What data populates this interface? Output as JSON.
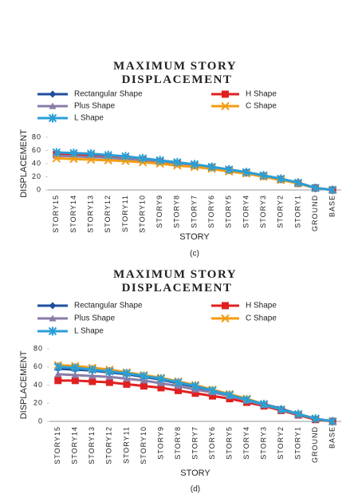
{
  "chart_data": [
    {
      "type": "line",
      "title": "MAXIMUM STORY DISPLACEMENT",
      "caption": "(c)",
      "x_label": "STORY",
      "y_label": "DISPLACEMENT",
      "categories": [
        "STORY15",
        "STORY14",
        "STORY13",
        "STORY12",
        "STORY11",
        "STORY10",
        "STORY9",
        "STORY8",
        "STORY7",
        "STORY6",
        "STORY5",
        "STORY4",
        "STORY3",
        "STORY2",
        "STORY1",
        "GROUND",
        "BASE"
      ],
      "ylim": [
        0,
        80
      ],
      "yticks": [
        0,
        20,
        40,
        60,
        80
      ],
      "grid": false,
      "series": [
        {
          "name": "Rectangular Shape",
          "color": "#1f4e9c",
          "marker": "diamond",
          "values": [
            55,
            54,
            53,
            51,
            49,
            47,
            44,
            41,
            38,
            35,
            31,
            27,
            22,
            17,
            11,
            3,
            0
          ]
        },
        {
          "name": "H Shape",
          "color": "#e02020",
          "marker": "square",
          "values": [
            54,
            53,
            52,
            50,
            48,
            46,
            43,
            40,
            37,
            34,
            30,
            26,
            21,
            16,
            10,
            3,
            0
          ]
        },
        {
          "name": "Plus Shape",
          "color": "#8a7ca8",
          "marker": "triangle",
          "values": [
            52,
            51,
            50,
            49,
            47,
            45,
            42,
            39,
            36,
            33,
            29,
            25,
            21,
            16,
            10,
            3,
            0
          ]
        },
        {
          "name": "C Shape",
          "color": "#f39c12",
          "marker": "cross",
          "values": [
            48,
            47,
            46,
            45,
            44,
            42,
            40,
            37,
            35,
            32,
            28,
            25,
            20,
            15,
            10,
            3,
            0
          ]
        },
        {
          "name": "L Shape",
          "color": "#2a9fd6",
          "marker": "asterisk",
          "values": [
            57,
            56,
            55,
            53,
            51,
            48,
            45,
            42,
            39,
            35,
            31,
            27,
            22,
            17,
            11,
            3,
            0
          ]
        }
      ]
    },
    {
      "type": "line",
      "title": "MAXIMUM STORY DISPLACEMENT",
      "caption": "(d)",
      "x_label": "STORY",
      "y_label": "DISPLACEMENT",
      "categories": [
        "STORY15",
        "STORY14",
        "STORY13",
        "STORY12",
        "STORY11",
        "STORY10",
        "STORY9",
        "STORY8",
        "STORY7",
        "STORY6",
        "STORY5",
        "STORY4",
        "STORY3",
        "STORY2",
        "STORY1",
        "GROUND",
        "BASE"
      ],
      "ylim": [
        0,
        80
      ],
      "yticks": [
        0,
        20,
        40,
        60,
        80
      ],
      "grid": false,
      "series": [
        {
          "name": "Rectangular Shape",
          "color": "#1f4e9c",
          "marker": "diamond",
          "values": [
            58,
            57,
            56,
            54,
            52,
            49,
            46,
            42,
            38,
            34,
            29,
            24,
            19,
            14,
            8,
            3,
            0
          ]
        },
        {
          "name": "H Shape",
          "color": "#e02020",
          "marker": "square",
          "values": [
            45,
            45,
            44,
            43,
            41,
            39,
            37,
            34,
            31,
            28,
            25,
            21,
            17,
            12,
            7,
            2,
            0
          ]
        },
        {
          "name": "Plus Shape",
          "color": "#8a7ca8",
          "marker": "triangle",
          "values": [
            52,
            51,
            50,
            49,
            47,
            45,
            42,
            39,
            35,
            32,
            28,
            23,
            18,
            13,
            8,
            3,
            0
          ]
        },
        {
          "name": "C Shape",
          "color": "#f39c12",
          "marker": "cross",
          "values": [
            62,
            61,
            59,
            57,
            54,
            51,
            48,
            44,
            40,
            35,
            30,
            25,
            19,
            13,
            8,
            3,
            0
          ]
        },
        {
          "name": "L Shape",
          "color": "#2a9fd6",
          "marker": "asterisk",
          "values": [
            60,
            59,
            57,
            55,
            53,
            50,
            47,
            43,
            39,
            34,
            29,
            24,
            19,
            13,
            8,
            3,
            0
          ]
        }
      ]
    }
  ]
}
